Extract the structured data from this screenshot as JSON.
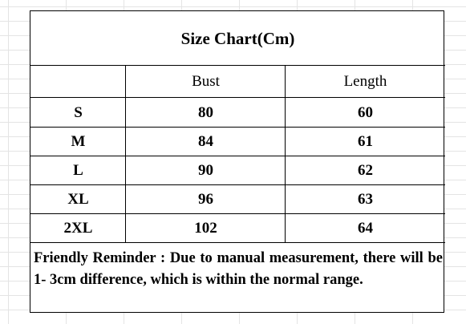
{
  "title": "Size Chart(Cm)",
  "table": {
    "header": [
      "Bust",
      "Length"
    ],
    "rows": [
      [
        "S",
        80,
        60
      ],
      [
        "M",
        84,
        61
      ],
      [
        "L",
        90,
        62
      ],
      [
        "XL",
        96,
        63
      ],
      [
        "2XL",
        102,
        64
      ]
    ]
  },
  "reminder": "Friendly Reminder : Due to manual measurement, there will be 1- 3cm difference, which is within the normal range."
}
